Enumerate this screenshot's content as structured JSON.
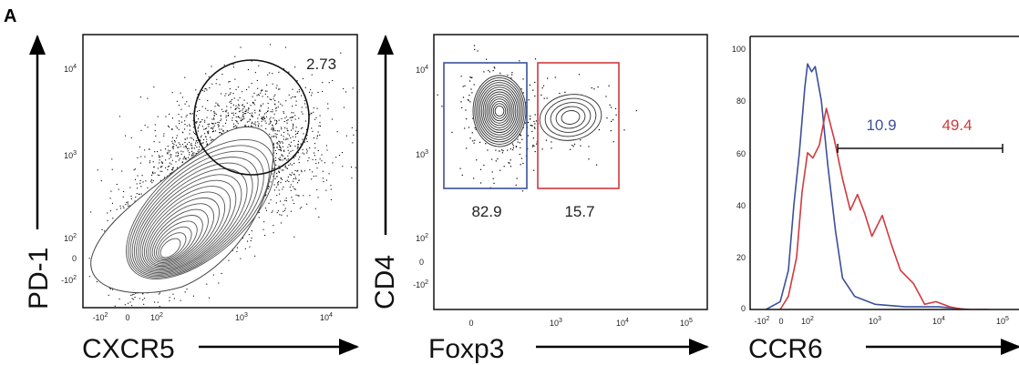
{
  "figure": {
    "panel_label": "A"
  },
  "chart_data": [
    {
      "type": "scatter",
      "subtype": "flow-cytometry contour plot with outliers",
      "xlabel": "CXCR5",
      "ylabel": "PD-1",
      "x_ticks": [
        "-10^2",
        "0",
        "10^2",
        "10^3",
        "10^4"
      ],
      "y_ticks": [
        "10^4",
        "10^3",
        "10^2",
        "0",
        "-10^2"
      ],
      "x_scale": "biexponential",
      "y_scale": "biexponential",
      "gates": [
        {
          "shape": "ellipse",
          "label": "2.73",
          "color": "#111111"
        }
      ]
    },
    {
      "type": "scatter",
      "subtype": "flow-cytometry contour plot with outliers",
      "xlabel": "Foxp3",
      "ylabel": "CD4",
      "x_ticks": [
        "0",
        "10^3",
        "10^4",
        "10^5"
      ],
      "y_ticks": [
        "10^4",
        "10^3",
        "10^2",
        "0",
        "-10^2"
      ],
      "x_scale": "biexponential",
      "y_scale": "biexponential",
      "gates": [
        {
          "shape": "rectangle",
          "label": "82.9",
          "color": "#3b4f9a"
        },
        {
          "shape": "rectangle",
          "label": "15.7",
          "color": "#d0393e"
        }
      ]
    },
    {
      "type": "line",
      "subtype": "histogram overlay",
      "xlabel": "CCR6",
      "ylabel": "",
      "x_ticks": [
        "-10^2",
        "0",
        "10^2",
        "10^3",
        "10^4",
        "10^5"
      ],
      "y_ticks": [
        "100",
        "80",
        "60",
        "40",
        "20",
        "0"
      ],
      "ylim": [
        0,
        100
      ],
      "x_scale": "biexponential",
      "gate": {
        "type": "range",
        "from": 280,
        "to": 100000,
        "labels": [
          {
            "text": "10.9",
            "color": "#3b4f9a"
          },
          {
            "text": "49.4",
            "color": "#d0393e"
          }
        ]
      },
      "series": [
        {
          "color": "#3b4f9a",
          "points": [
            [
              -60,
              0
            ],
            [
              0,
              3
            ],
            [
              30,
              15
            ],
            [
              50,
              40
            ],
            [
              70,
              60
            ],
            [
              90,
              85
            ],
            [
              100,
              94
            ],
            [
              115,
              91
            ],
            [
              130,
              93
            ],
            [
              160,
              80
            ],
            [
              200,
              55
            ],
            [
              260,
              30
            ],
            [
              330,
              12
            ],
            [
              500,
              5
            ],
            [
              1000,
              2
            ],
            [
              3000,
              1
            ],
            [
              10000,
              1
            ],
            [
              30000,
              0
            ]
          ]
        },
        {
          "color": "#d0393e",
          "points": [
            [
              0,
              0
            ],
            [
              30,
              5
            ],
            [
              60,
              20
            ],
            [
              80,
              45
            ],
            [
              100,
              60
            ],
            [
              120,
              58
            ],
            [
              150,
              63
            ],
            [
              190,
              77
            ],
            [
              250,
              65
            ],
            [
              330,
              50
            ],
            [
              430,
              38
            ],
            [
              550,
              44
            ],
            [
              700,
              37
            ],
            [
              900,
              28
            ],
            [
              1300,
              36
            ],
            [
              1800,
              25
            ],
            [
              2500,
              15
            ],
            [
              4000,
              10
            ],
            [
              6000,
              2
            ],
            [
              9000,
              3
            ],
            [
              15000,
              1
            ],
            [
              25000,
              0
            ],
            [
              60000,
              0
            ]
          ]
        }
      ]
    }
  ]
}
